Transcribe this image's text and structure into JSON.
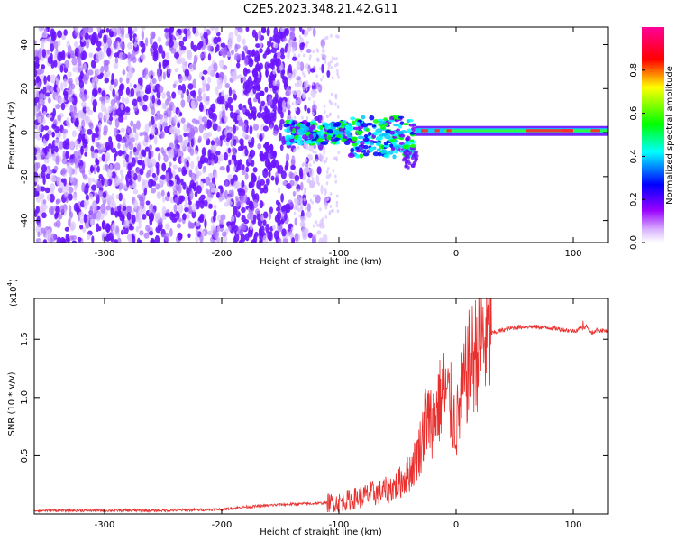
{
  "figure_title": "C2E5.2023.348.21.42.G11",
  "chart_data": [
    {
      "type": "heatmap",
      "title": "",
      "xlabel": "Height of straight line (km)",
      "ylabel": "Frequency (Hz)",
      "xlim": [
        -360,
        130
      ],
      "ylim": [
        -50,
        48
      ],
      "xticks": [
        -300,
        -200,
        -100,
        0,
        100
      ],
      "yticks": [
        -40,
        -20,
        0,
        20,
        40
      ],
      "grid": false,
      "colorbar": {
        "label": "Normalized spectral amplitude",
        "range": [
          0.0,
          1.0
        ],
        "ticks": [
          0.0,
          0.2,
          0.4,
          0.6,
          0.8
        ],
        "colormap": [
          "#ffffff",
          "#9900ff",
          "#0000ff",
          "#00ffff",
          "#00ff00",
          "#ffff00",
          "#ff0000",
          "#ff00aa"
        ]
      },
      "regions": [
        {
          "x_range": [
            -360,
            -145
          ],
          "freq_range": [
            -50,
            48
          ],
          "description_value": "broadband noise",
          "amplitude": [
            0.05,
            0.25
          ]
        },
        {
          "x_range": [
            -145,
            -35
          ],
          "freq_range": [
            -12,
            8
          ],
          "center_freq": 0,
          "amplitude": [
            0.3,
            0.8
          ]
        },
        {
          "x_range": [
            -35,
            130
          ],
          "freq_range": [
            -2,
            3
          ],
          "center_freq": 1,
          "amplitude": [
            0.4,
            1.0
          ]
        }
      ]
    },
    {
      "type": "line",
      "title": "",
      "xlabel": "Height of straight line (km)",
      "ylabel": "SNR (10 * v/v)",
      "multiplier_label": "(x10",
      "multiplier_exp": "4",
      "multiplier_close": ")",
      "xlim": [
        -360,
        130
      ],
      "ylim": [
        0,
        1.85
      ],
      "xticks": [
        -300,
        -200,
        -100,
        0,
        100
      ],
      "yticks": [
        0.5,
        1.0,
        1.5
      ],
      "ytick_labels": [
        "0.5",
        "1.0",
        "1.5"
      ],
      "series": [
        {
          "color": "#e8302e",
          "x": [
            -360,
            -300,
            -250,
            -200,
            -180,
            -150,
            -120,
            -100,
            -80,
            -60,
            -50,
            -40,
            -35,
            -30,
            -25,
            -20,
            -15,
            -10,
            -5,
            0,
            5,
            10,
            20,
            30,
            40,
            50,
            60,
            80,
            100,
            108,
            112,
            115,
            120,
            130
          ],
          "y": [
            0.03,
            0.03,
            0.03,
            0.04,
            0.06,
            0.08,
            0.09,
            0.1,
            0.15,
            0.2,
            0.25,
            0.35,
            0.45,
            0.6,
            0.85,
            0.8,
            0.95,
            1.05,
            0.95,
            0.75,
            1.0,
            1.25,
            1.45,
            1.55,
            1.58,
            1.6,
            1.61,
            1.6,
            1.57,
            1.6,
            1.62,
            1.55,
            1.58,
            1.57
          ]
        }
      ]
    }
  ]
}
